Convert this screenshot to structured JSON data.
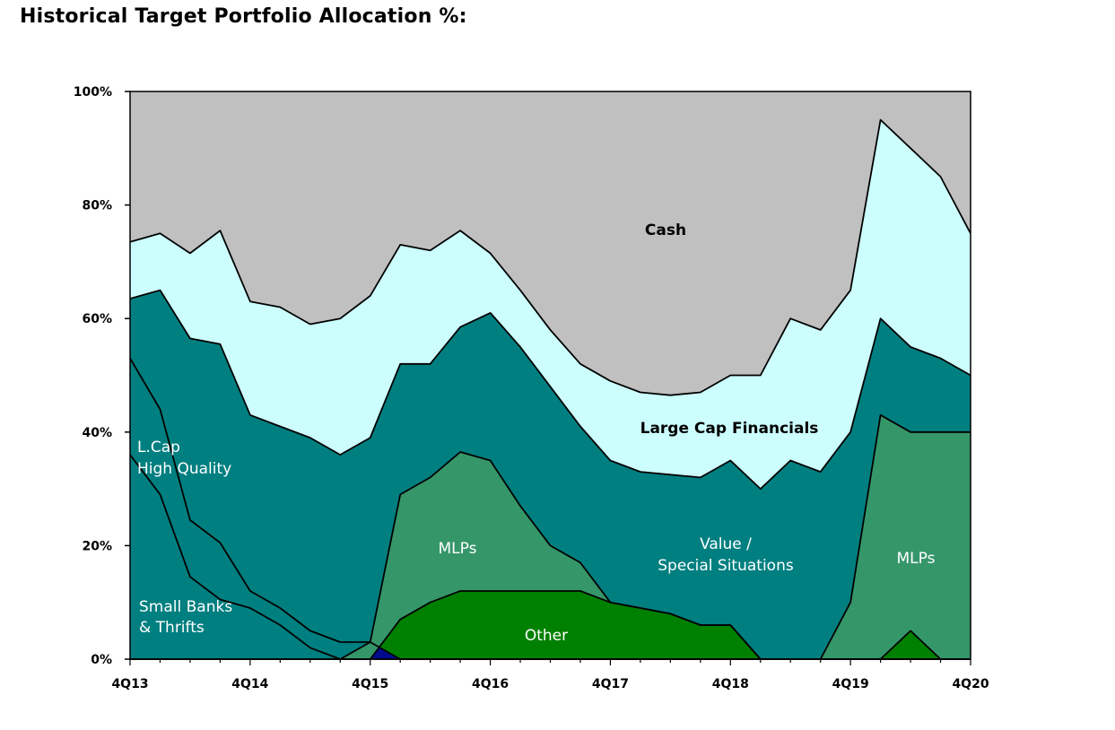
{
  "title": "Historical Target Portfolio Allocation %:",
  "chart_data": {
    "type": "area",
    "stacked": true,
    "title": "Historical Target Portfolio Allocation %:",
    "xlabel": "",
    "ylabel": "",
    "ylim": [
      0,
      100
    ],
    "x_tick_labels": [
      "4Q13",
      "4Q14",
      "4Q15",
      "4Q16",
      "4Q17",
      "4Q18",
      "4Q19",
      "4Q20"
    ],
    "y_tick_labels": [
      "0%",
      "20%",
      "40%",
      "60%",
      "80%",
      "100%"
    ],
    "y_ticks": [
      0,
      20,
      40,
      60,
      80,
      100
    ],
    "periods": 29,
    "cumulative_boundaries": [
      {
        "name": "Small Banks & Thrifts",
        "values": [
          36,
          29,
          14.5,
          10.5,
          9,
          6,
          2,
          0,
          0,
          0,
          0,
          0,
          0,
          0,
          0,
          0,
          0,
          0,
          0,
          0,
          0,
          0,
          0,
          0,
          0,
          0,
          0,
          0,
          0
        ]
      },
      {
        "name": "L.Cap High Quality",
        "values": [
          53,
          44,
          24.5,
          20.5,
          12,
          9,
          5,
          3,
          3,
          0,
          0,
          0,
          0,
          0,
          0,
          0,
          0,
          0,
          0,
          0,
          0,
          0,
          0,
          0,
          0,
          0,
          0,
          0,
          0
        ]
      },
      {
        "name": "Other",
        "values": [
          0,
          0,
          0,
          0,
          0,
          0,
          0,
          0,
          0,
          7,
          10,
          12,
          12,
          12,
          12,
          12,
          10,
          9,
          8,
          6,
          6,
          0,
          0,
          0,
          0,
          0,
          5,
          0,
          0
        ]
      },
      {
        "name": "MLPs",
        "values": [
          0,
          0,
          0,
          0,
          0,
          0,
          0,
          0,
          3,
          29,
          32,
          36.5,
          35,
          27,
          20,
          17,
          10,
          9,
          8,
          6,
          6,
          0,
          0,
          0,
          10,
          43,
          40,
          40,
          40
        ]
      },
      {
        "name": "Value / Special Situations",
        "values": [
          63.5,
          65,
          56.5,
          55.5,
          43,
          41,
          39,
          36,
          39,
          52,
          52,
          58.5,
          61,
          55,
          48,
          41,
          35,
          33,
          32.5,
          32,
          35,
          30,
          35,
          33,
          40,
          60,
          55,
          53,
          50
        ]
      },
      {
        "name": "Large Cap Financials",
        "values": [
          73.5,
          75,
          71.5,
          75.5,
          63,
          62,
          59,
          60,
          64,
          73,
          72,
          75.5,
          71.5,
          65,
          58,
          52,
          49,
          47,
          46.5,
          47,
          50,
          50,
          60,
          58,
          65,
          95,
          90,
          85,
          75
        ]
      },
      {
        "name": "Cash",
        "values": [
          100,
          100,
          100,
          100,
          100,
          100,
          100,
          100,
          100,
          100,
          100,
          100,
          100,
          100,
          100,
          100,
          100,
          100,
          100,
          100,
          100,
          100,
          100,
          100,
          100,
          100,
          100,
          100,
          100
        ]
      }
    ],
    "series": [
      {
        "name": "Small Banks & Thrifts",
        "color": "#00305f"
      },
      {
        "name": "L.Cap High Quality",
        "color": "#000a8c"
      },
      {
        "name": "Other",
        "color": "#008000"
      },
      {
        "name": "MLPs",
        "color": "#35966a"
      },
      {
        "name": "Value / Special Situations",
        "color": "#007f80"
      },
      {
        "name": "Large Cap Financials",
        "color": "#ccfefe"
      },
      {
        "name": "Cash",
        "color": "#c0c0c0"
      }
    ],
    "labels": [
      {
        "id": "cash",
        "text": "Cash",
        "color": "#000000",
        "bold": true
      },
      {
        "id": "lcf",
        "text": "Large Cap Financials",
        "color": "#000000",
        "bold": true
      },
      {
        "id": "vss1",
        "text": "Value /",
        "color": "#ffffff",
        "bold": false
      },
      {
        "id": "vss2",
        "text": "Special Situations",
        "color": "#ffffff",
        "bold": false
      },
      {
        "id": "mlp1",
        "text": "MLPs",
        "color": "#ffffff",
        "bold": false
      },
      {
        "id": "mlp2",
        "text": "MLPs",
        "color": "#ffffff",
        "bold": false
      },
      {
        "id": "other",
        "text": "Other",
        "color": "#ffffff",
        "bold": false
      },
      {
        "id": "lcap1",
        "text": "L.Cap",
        "color": "#ffffff",
        "bold": false
      },
      {
        "id": "lcap2",
        "text": "High Quality",
        "color": "#ffffff",
        "bold": false
      },
      {
        "id": "sbt1",
        "text": "Small Banks",
        "color": "#ffffff",
        "bold": false
      },
      {
        "id": "sbt2",
        "text": "& Thrifts",
        "color": "#ffffff",
        "bold": false
      }
    ]
  }
}
